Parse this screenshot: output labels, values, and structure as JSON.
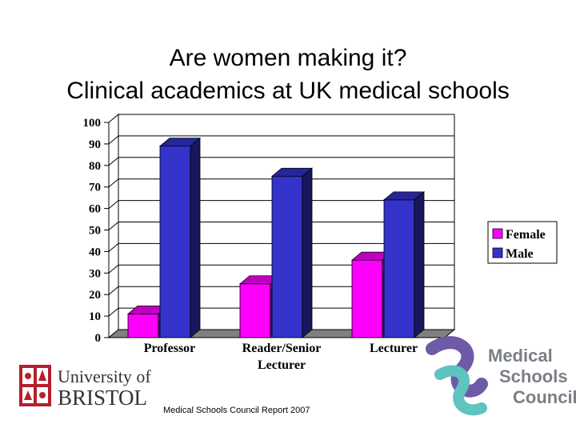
{
  "title": "Are women making it?",
  "subtitle": "Clinical academics at UK medical schools",
  "chart_data": {
    "type": "bar",
    "categories": [
      [
        "Professor"
      ],
      [
        "Reader/Senior",
        "Lecturer"
      ],
      [
        "Lecturer"
      ]
    ],
    "series": [
      {
        "name": "Female",
        "values": [
          11,
          25,
          36
        ],
        "color": "#ff00ff"
      },
      {
        "name": "Male",
        "values": [
          89,
          75,
          64
        ],
        "color": "#3333cc"
      }
    ],
    "ylim": [
      0,
      100
    ],
    "yticks": [
      "0",
      "10",
      "20",
      "30",
      "40",
      "50",
      "60",
      "70",
      "80",
      "90",
      "100"
    ],
    "grid": true,
    "legend": "right"
  },
  "footer": {
    "source": "Medical Schools Council Report 2007",
    "bristol_logo": {
      "line1": "University of",
      "line2": "BRISTOL"
    },
    "msc_logo": {
      "line1": "Medical",
      "line2": "Schools",
      "line3": "Council"
    }
  }
}
